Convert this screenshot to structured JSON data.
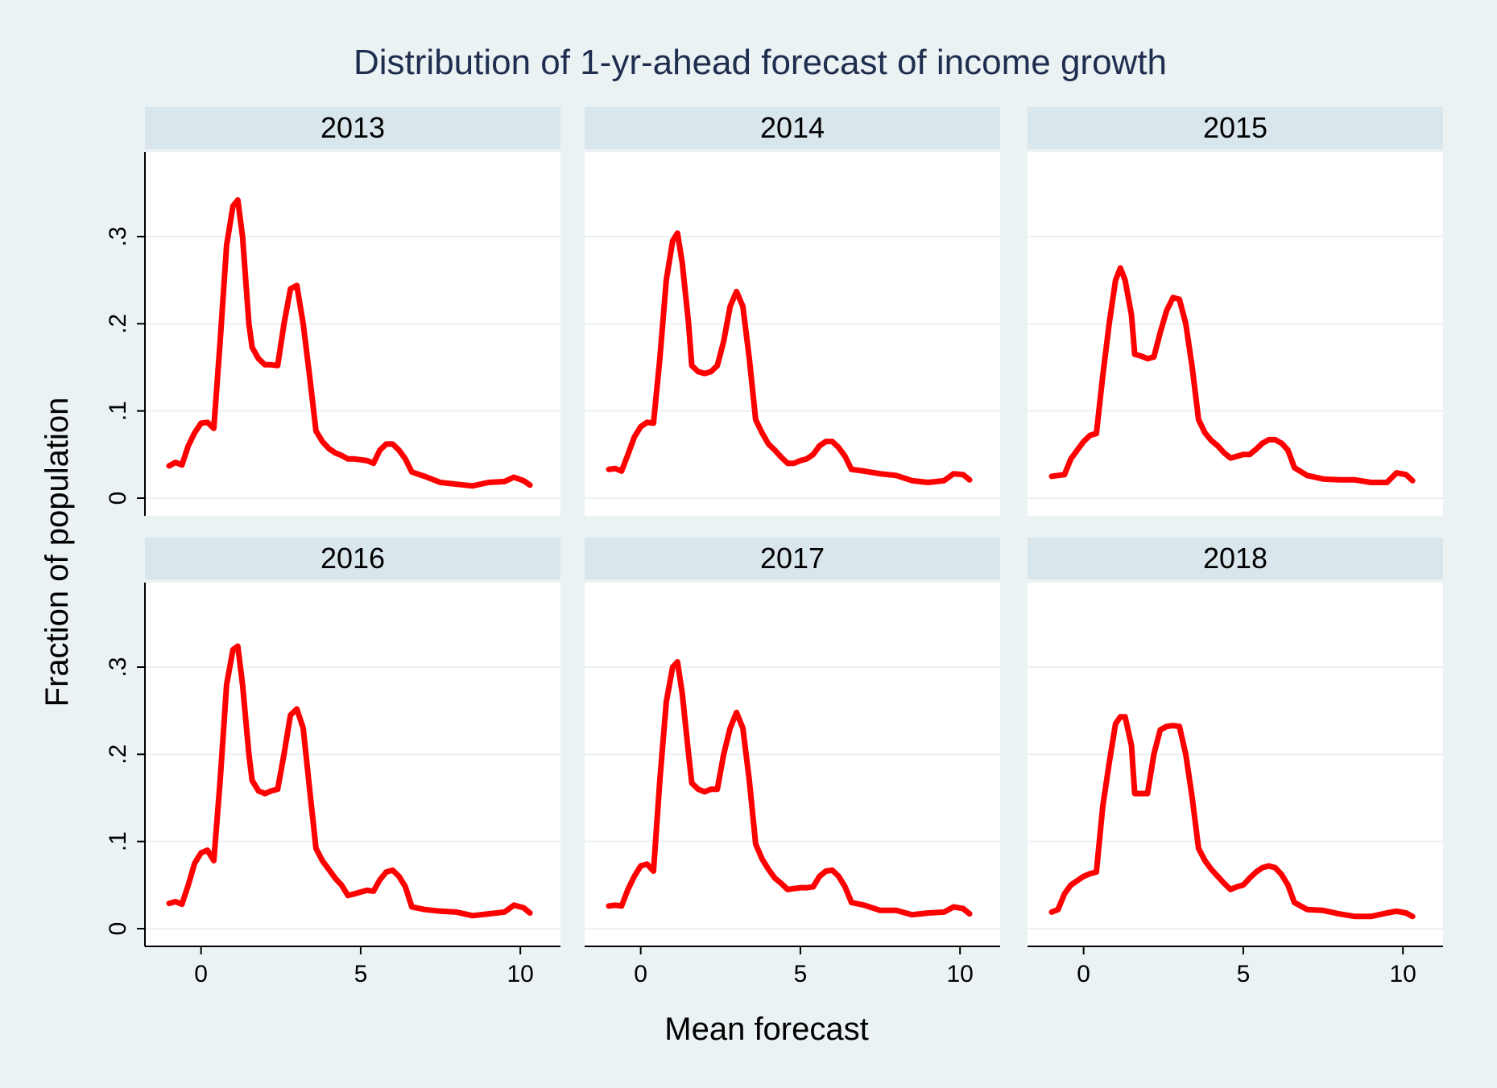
{
  "title": "Distribution of 1-yr-ahead forecast of income growth",
  "xlabel": "Mean forecast",
  "ylabel": "Fraction of population",
  "colors": {
    "background": "#eaf2f3",
    "strip": "#d9e6eb",
    "panel": "#ffffff",
    "line": "#ff0000",
    "title": "#1f2d4f",
    "grid": "#eaf2f3"
  },
  "chart_data": {
    "type": "line",
    "grid": true,
    "xlim": [
      -1,
      10.5
    ],
    "ylim": [
      0,
      0.35
    ],
    "xticks": [
      0,
      5,
      10
    ],
    "xtick_labels": [
      "0",
      "5",
      "10"
    ],
    "yticks": [
      0,
      0.1,
      0.2,
      0.3
    ],
    "ytick_labels": [
      "0",
      ".1",
      ".2",
      ".3"
    ],
    "panels": [
      {
        "name": "2013",
        "x": [
          -1,
          -0.8,
          -0.6,
          -0.4,
          -0.2,
          0,
          0.2,
          0.4,
          0.6,
          0.8,
          1.0,
          1.15,
          1.3,
          1.5,
          1.6,
          1.8,
          2.0,
          2.2,
          2.4,
          2.6,
          2.8,
          3.0,
          3.2,
          3.4,
          3.6,
          3.8,
          4.0,
          4.2,
          4.4,
          4.6,
          4.8,
          5.0,
          5.2,
          5.4,
          5.6,
          5.8,
          6.0,
          6.2,
          6.4,
          6.6,
          7.0,
          7.5,
          8.0,
          8.5,
          9.0,
          9.5,
          9.8,
          10.1,
          10.3
        ],
        "y": [
          0.037,
          0.041,
          0.038,
          0.06,
          0.075,
          0.086,
          0.087,
          0.08,
          0.18,
          0.29,
          0.335,
          0.342,
          0.3,
          0.2,
          0.173,
          0.16,
          0.153,
          0.153,
          0.152,
          0.2,
          0.24,
          0.244,
          0.2,
          0.14,
          0.077,
          0.065,
          0.057,
          0.052,
          0.049,
          0.045,
          0.045,
          0.044,
          0.043,
          0.04,
          0.055,
          0.062,
          0.062,
          0.055,
          0.045,
          0.03,
          0.025,
          0.018,
          0.016,
          0.014,
          0.018,
          0.019,
          0.024,
          0.02,
          0.015
        ]
      },
      {
        "name": "2014",
        "x": [
          -1,
          -0.8,
          -0.6,
          -0.4,
          -0.2,
          0,
          0.2,
          0.4,
          0.6,
          0.8,
          1.0,
          1.15,
          1.3,
          1.5,
          1.6,
          1.8,
          2.0,
          2.2,
          2.4,
          2.6,
          2.8,
          3.0,
          3.2,
          3.4,
          3.6,
          3.8,
          4.0,
          4.2,
          4.4,
          4.6,
          4.8,
          5.0,
          5.2,
          5.4,
          5.6,
          5.8,
          6.0,
          6.2,
          6.4,
          6.6,
          7.0,
          7.5,
          8.0,
          8.5,
          9.0,
          9.5,
          9.8,
          10.1,
          10.3
        ],
        "y": [
          0.033,
          0.034,
          0.031,
          0.05,
          0.07,
          0.082,
          0.087,
          0.086,
          0.16,
          0.25,
          0.295,
          0.304,
          0.27,
          0.2,
          0.152,
          0.145,
          0.143,
          0.145,
          0.152,
          0.18,
          0.22,
          0.237,
          0.22,
          0.16,
          0.09,
          0.075,
          0.062,
          0.055,
          0.047,
          0.04,
          0.04,
          0.043,
          0.045,
          0.05,
          0.06,
          0.065,
          0.065,
          0.058,
          0.048,
          0.033,
          0.031,
          0.028,
          0.026,
          0.02,
          0.018,
          0.02,
          0.028,
          0.027,
          0.021
        ]
      },
      {
        "name": "2015",
        "x": [
          -1,
          -0.8,
          -0.6,
          -0.4,
          -0.2,
          0,
          0.2,
          0.4,
          0.6,
          0.8,
          1.0,
          1.15,
          1.3,
          1.5,
          1.6,
          1.8,
          2.0,
          2.2,
          2.4,
          2.6,
          2.8,
          3.0,
          3.2,
          3.4,
          3.6,
          3.8,
          4.0,
          4.2,
          4.4,
          4.6,
          4.8,
          5.0,
          5.2,
          5.4,
          5.6,
          5.8,
          6.0,
          6.2,
          6.4,
          6.6,
          7.0,
          7.5,
          8.0,
          8.5,
          9.0,
          9.5,
          9.8,
          10.1,
          10.3
        ],
        "y": [
          0.025,
          0.026,
          0.027,
          0.045,
          0.055,
          0.065,
          0.072,
          0.074,
          0.14,
          0.2,
          0.25,
          0.264,
          0.25,
          0.21,
          0.165,
          0.163,
          0.16,
          0.162,
          0.19,
          0.215,
          0.23,
          0.228,
          0.2,
          0.15,
          0.09,
          0.075,
          0.066,
          0.06,
          0.052,
          0.046,
          0.048,
          0.05,
          0.05,
          0.056,
          0.063,
          0.067,
          0.067,
          0.063,
          0.055,
          0.035,
          0.026,
          0.022,
          0.021,
          0.021,
          0.018,
          0.018,
          0.029,
          0.027,
          0.02
        ]
      },
      {
        "name": "2016",
        "x": [
          -1,
          -0.8,
          -0.6,
          -0.4,
          -0.2,
          0,
          0.2,
          0.4,
          0.6,
          0.8,
          1.0,
          1.15,
          1.3,
          1.5,
          1.6,
          1.8,
          2.0,
          2.2,
          2.4,
          2.6,
          2.8,
          3.0,
          3.2,
          3.4,
          3.6,
          3.8,
          4.0,
          4.2,
          4.4,
          4.6,
          4.8,
          5.0,
          5.2,
          5.4,
          5.6,
          5.8,
          6.0,
          6.2,
          6.4,
          6.6,
          7.0,
          7.5,
          8.0,
          8.5,
          9.0,
          9.5,
          9.8,
          10.1,
          10.3
        ],
        "y": [
          0.029,
          0.031,
          0.028,
          0.05,
          0.075,
          0.087,
          0.09,
          0.078,
          0.17,
          0.28,
          0.32,
          0.324,
          0.28,
          0.2,
          0.17,
          0.158,
          0.155,
          0.158,
          0.16,
          0.2,
          0.245,
          0.252,
          0.23,
          0.16,
          0.092,
          0.078,
          0.068,
          0.058,
          0.05,
          0.038,
          0.04,
          0.042,
          0.044,
          0.043,
          0.056,
          0.065,
          0.067,
          0.06,
          0.048,
          0.025,
          0.022,
          0.02,
          0.019,
          0.015,
          0.017,
          0.019,
          0.027,
          0.024,
          0.018
        ]
      },
      {
        "name": "2017",
        "x": [
          -1,
          -0.8,
          -0.6,
          -0.4,
          -0.2,
          0,
          0.2,
          0.4,
          0.6,
          0.8,
          1.0,
          1.15,
          1.3,
          1.5,
          1.6,
          1.8,
          2.0,
          2.2,
          2.4,
          2.6,
          2.8,
          3.0,
          3.2,
          3.4,
          3.6,
          3.8,
          4.0,
          4.2,
          4.4,
          4.6,
          4.8,
          5.0,
          5.2,
          5.4,
          5.6,
          5.8,
          6.0,
          6.2,
          6.4,
          6.6,
          7.0,
          7.5,
          8.0,
          8.5,
          9.0,
          9.5,
          9.8,
          10.1,
          10.3
        ],
        "y": [
          0.026,
          0.027,
          0.026,
          0.045,
          0.06,
          0.072,
          0.074,
          0.066,
          0.17,
          0.26,
          0.3,
          0.306,
          0.27,
          0.2,
          0.167,
          0.16,
          0.157,
          0.16,
          0.16,
          0.2,
          0.23,
          0.248,
          0.23,
          0.17,
          0.097,
          0.08,
          0.068,
          0.058,
          0.052,
          0.045,
          0.046,
          0.047,
          0.047,
          0.048,
          0.06,
          0.066,
          0.067,
          0.06,
          0.048,
          0.03,
          0.027,
          0.021,
          0.021,
          0.016,
          0.018,
          0.019,
          0.025,
          0.023,
          0.017
        ]
      },
      {
        "name": "2018",
        "x": [
          -1,
          -0.8,
          -0.6,
          -0.4,
          -0.2,
          0,
          0.2,
          0.4,
          0.6,
          0.8,
          1.0,
          1.15,
          1.3,
          1.5,
          1.6,
          1.8,
          2.0,
          2.2,
          2.4,
          2.6,
          2.8,
          3.0,
          3.2,
          3.4,
          3.6,
          3.8,
          4.0,
          4.2,
          4.4,
          4.6,
          4.8,
          5.0,
          5.2,
          5.4,
          5.6,
          5.8,
          6.0,
          6.2,
          6.4,
          6.6,
          7.0,
          7.5,
          8.0,
          8.5,
          9.0,
          9.5,
          9.8,
          10.1,
          10.3
        ],
        "y": [
          0.019,
          0.022,
          0.04,
          0.05,
          0.055,
          0.06,
          0.063,
          0.065,
          0.14,
          0.19,
          0.235,
          0.243,
          0.243,
          0.21,
          0.155,
          0.155,
          0.155,
          0.2,
          0.228,
          0.232,
          0.233,
          0.232,
          0.2,
          0.15,
          0.092,
          0.078,
          0.068,
          0.06,
          0.052,
          0.045,
          0.048,
          0.05,
          0.058,
          0.065,
          0.07,
          0.072,
          0.07,
          0.062,
          0.05,
          0.03,
          0.022,
          0.021,
          0.017,
          0.014,
          0.014,
          0.018,
          0.02,
          0.018,
          0.014
        ]
      }
    ]
  }
}
